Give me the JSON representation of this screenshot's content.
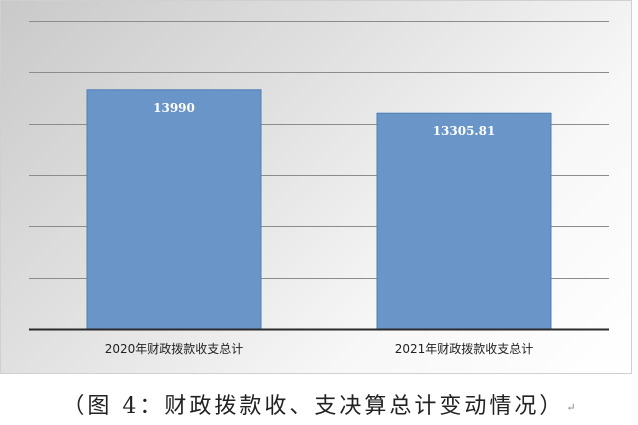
{
  "chart_data": {
    "type": "bar",
    "categories": [
      "2020年财政拨款收支总计",
      "2021年财政拨款收支总计"
    ],
    "values": [
      13990,
      13305.81
    ],
    "value_labels": [
      "13990",
      "13305.81"
    ],
    "ylim": [
      7000,
      16000
    ],
    "y_gridlines": [
      7000,
      8500,
      10000,
      11500,
      13000,
      14500,
      16000
    ],
    "grid": true,
    "bar_color": "#6a95c8",
    "bar_edge_color": "#4f7fb6",
    "title": "",
    "xlabel": "",
    "ylabel": ""
  },
  "caption": {
    "text": "（图 4：财政拨款收、支决算总计变动情况）",
    "return_mark": "↵"
  }
}
